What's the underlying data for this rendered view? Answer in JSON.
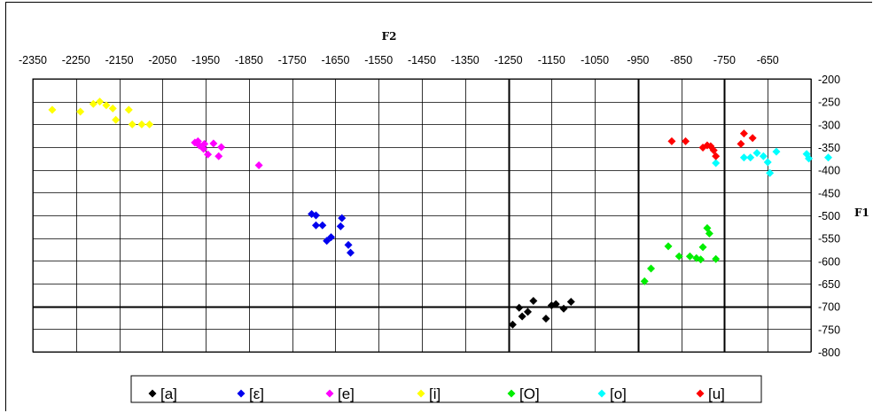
{
  "chart_data": {
    "type": "scatter",
    "title": "",
    "xlabel": "F2",
    "ylabel": "F1",
    "xlim": [
      -2350,
      -550
    ],
    "ylim": [
      -800,
      -200
    ],
    "x_reversed": false,
    "x_ticks": [
      -2350,
      -2250,
      -2150,
      -2050,
      -1950,
      -1850,
      -1750,
      -1650,
      -1550,
      -1450,
      -1350,
      -1250,
      -1150,
      -1050,
      -950,
      -850,
      -750,
      -650
    ],
    "y_ticks": [
      -200,
      -250,
      -300,
      -350,
      -400,
      -450,
      -500,
      -550,
      -600,
      -650,
      -700,
      -750,
      -800
    ],
    "tick_labels_x": [
      "-2350",
      "-2250",
      "-2150",
      "-2050",
      "-1950",
      "-1850",
      "-1750",
      "-1650",
      "-1550",
      "-1450",
      "-1350",
      "-1250",
      "-1150",
      "-1050",
      "-950",
      "-850",
      "-750",
      "-650"
    ],
    "tick_labels_y": [
      "-200",
      "-250",
      "-300",
      "-350",
      "-400",
      "-450",
      "-500",
      "-550",
      "-600",
      "-650",
      "-700",
      "-750",
      "-800"
    ],
    "grid": true,
    "legend_position": "bottom",
    "marker": "diamond",
    "series": [
      {
        "name": "[a]",
        "color": "#000000",
        "points": [
          [
            -1240,
            -740
          ],
          [
            -1225,
            -703
          ],
          [
            -1218,
            -722
          ],
          [
            -1205,
            -712
          ],
          [
            -1192,
            -688
          ],
          [
            -1163,
            -727
          ],
          [
            -1150,
            -698
          ],
          [
            -1140,
            -695
          ],
          [
            -1122,
            -705
          ],
          [
            -1105,
            -690
          ]
        ]
      },
      {
        "name": "[ε]",
        "color": "#0000ee",
        "points": [
          [
            -1705,
            -497
          ],
          [
            -1695,
            -500
          ],
          [
            -1695,
            -522
          ],
          [
            -1680,
            -522
          ],
          [
            -1670,
            -556
          ],
          [
            -1660,
            -548
          ],
          [
            -1638,
            -524
          ],
          [
            -1635,
            -506
          ],
          [
            -1620,
            -565
          ],
          [
            -1615,
            -582
          ]
        ]
      },
      {
        "name": "[e]",
        "color": "#ff00ff",
        "points": [
          [
            -1975,
            -340
          ],
          [
            -1968,
            -337
          ],
          [
            -1965,
            -346
          ],
          [
            -1955,
            -354
          ],
          [
            -1953,
            -343
          ],
          [
            -1945,
            -366
          ],
          [
            -1932,
            -342
          ],
          [
            -1920,
            -370
          ],
          [
            -1914,
            -350
          ],
          [
            -1827,
            -390
          ]
        ]
      },
      {
        "name": "[i]",
        "color": "#ffff00",
        "points": [
          [
            -2305,
            -268
          ],
          [
            -2240,
            -272
          ],
          [
            -2210,
            -255
          ],
          [
            -2195,
            -250
          ],
          [
            -2180,
            -258
          ],
          [
            -2165,
            -265
          ],
          [
            -2158,
            -290
          ],
          [
            -2128,
            -268
          ],
          [
            -2120,
            -300
          ],
          [
            -2098,
            -300
          ],
          [
            -2080,
            -300
          ]
        ]
      },
      {
        "name": "[O]",
        "color": "#00ee00",
        "points": [
          [
            -935,
            -645
          ],
          [
            -920,
            -617
          ],
          [
            -880,
            -568
          ],
          [
            -855,
            -590
          ],
          [
            -830,
            -590
          ],
          [
            -815,
            -594
          ],
          [
            -805,
            -597
          ],
          [
            -800,
            -570
          ],
          [
            -790,
            -528
          ],
          [
            -785,
            -540
          ],
          [
            -770,
            -596
          ]
        ]
      },
      {
        "name": "[o]",
        "color": "#00ffff",
        "points": [
          [
            -770,
            -385
          ],
          [
            -705,
            -373
          ],
          [
            -690,
            -373
          ],
          [
            -675,
            -363
          ],
          [
            -660,
            -370
          ],
          [
            -650,
            -383
          ],
          [
            -645,
            -407
          ],
          [
            -630,
            -360
          ],
          [
            -560,
            -365
          ],
          [
            -555,
            -375
          ],
          [
            -510,
            -373
          ]
        ]
      },
      {
        "name": "[u]",
        "color": "#ff0000",
        "points": [
          [
            -872,
            -337
          ],
          [
            -840,
            -337
          ],
          [
            -800,
            -351
          ],
          [
            -790,
            -346
          ],
          [
            -782,
            -348
          ],
          [
            -775,
            -357
          ],
          [
            -770,
            -370
          ],
          [
            -712,
            -343
          ],
          [
            -705,
            -320
          ],
          [
            -685,
            -330
          ]
        ]
      }
    ]
  }
}
